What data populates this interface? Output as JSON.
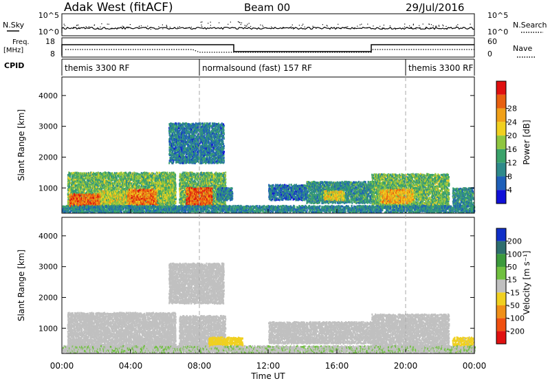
{
  "header": {
    "station": "Adak West (fitACF)",
    "beam": "Beam 00",
    "date": "29/Jul/2016"
  },
  "nsky_panel": {
    "left_label": "N.Sky",
    "right_label": "N.Search",
    "left_ticks": [
      "10^5",
      "10^0"
    ],
    "right_ticks": [
      "10^5",
      "10^0"
    ]
  },
  "freq_panel": {
    "left_label_top": "Freq.",
    "left_label_unit": "[MHz]",
    "right_label": "Nave",
    "left_ticks": [
      "18",
      "8"
    ],
    "right_ticks": [
      "60",
      "0"
    ]
  },
  "cpid_panel": {
    "label": "CPID",
    "segments": [
      {
        "start": 0,
        "end": 8,
        "text": "themis 3300 RF"
      },
      {
        "start": 8,
        "end": 20,
        "text": "normalsound (fast) 157 RF"
      },
      {
        "start": 20,
        "end": 24,
        "text": "themis 3300 RF"
      }
    ]
  },
  "chart_data": [
    {
      "type": "heatmap",
      "title": "",
      "parameter": "power",
      "xlabel": "",
      "ylabel": "Slant Range [km]",
      "xlim": [
        0,
        24
      ],
      "ylim": [
        180,
        4600
      ],
      "yticks": [
        "1000",
        "2000",
        "3000",
        "4000"
      ],
      "colorbar": {
        "label": "Power [dB]",
        "range": [
          0,
          32
        ],
        "tick_labels": [
          "4",
          "8",
          "12",
          "16",
          "20",
          "24",
          "28"
        ],
        "colors": [
          "#1010d8",
          "#1e5fb8",
          "#2e8a8a",
          "#3aa26a",
          "#8fc640",
          "#f0d020",
          "#f0a018",
          "#e86010",
          "#e01010"
        ]
      },
      "blobs": [
        {
          "x0": 0.3,
          "x1": 6.6,
          "y0": 350,
          "y1": 1500,
          "value": 14
        },
        {
          "x0": 0.4,
          "x1": 2.2,
          "y0": 400,
          "y1": 800,
          "value": 26
        },
        {
          "x0": 2.2,
          "x1": 3.8,
          "y0": 450,
          "y1": 900,
          "value": 18
        },
        {
          "x0": 3.8,
          "x1": 5.6,
          "y0": 450,
          "y1": 950,
          "value": 25
        },
        {
          "x0": 5.5,
          "x1": 6.6,
          "y0": 500,
          "y1": 1200,
          "value": 16
        },
        {
          "x0": 6.8,
          "x1": 9.5,
          "y0": 350,
          "y1": 1500,
          "value": 14
        },
        {
          "x0": 7.2,
          "x1": 8.7,
          "y0": 400,
          "y1": 1000,
          "value": 27
        },
        {
          "x0": 9.0,
          "x1": 9.9,
          "y0": 600,
          "y1": 1000,
          "value": 8
        },
        {
          "x0": 6.2,
          "x1": 9.4,
          "y0": 1800,
          "y1": 3100,
          "value": 8
        },
        {
          "x0": 12.0,
          "x1": 14.2,
          "y0": 600,
          "y1": 1100,
          "value": 7
        },
        {
          "x0": 14.2,
          "x1": 18.0,
          "y0": 500,
          "y1": 1200,
          "value": 10
        },
        {
          "x0": 15.2,
          "x1": 16.4,
          "y0": 600,
          "y1": 900,
          "value": 19
        },
        {
          "x0": 18.0,
          "x1": 22.5,
          "y0": 350,
          "y1": 1450,
          "value": 14
        },
        {
          "x0": 18.5,
          "x1": 20.4,
          "y0": 500,
          "y1": 950,
          "value": 22
        },
        {
          "x0": 22.7,
          "x1": 23.9,
          "y0": 400,
          "y1": 1000,
          "value": 10
        },
        {
          "x0": 0.0,
          "x1": 24.0,
          "y0": 200,
          "y1": 420,
          "value": 9
        }
      ]
    },
    {
      "type": "heatmap",
      "title": "",
      "parameter": "velocity",
      "xlabel": "Time UT",
      "ylabel": "Slant Range [km]",
      "xlim": [
        0,
        24
      ],
      "ylim": [
        180,
        4600
      ],
      "xticks": [
        "00:00",
        "04:00",
        "08:00",
        "12:00",
        "16:00",
        "20:00",
        "00:00"
      ],
      "yticks": [
        "1000",
        "2000",
        "3000",
        "4000"
      ],
      "colorbar": {
        "label": "Velocity [m s⁻¹]",
        "range": [
          -250,
          250
        ],
        "tick_labels": [
          "200",
          "100",
          "50",
          "15",
          "-15",
          "-50",
          "-100",
          "-200"
        ],
        "colors": [
          "#1030c8",
          "#2e6e6e",
          "#3c9a3c",
          "#70c040",
          "#c0c0c0",
          "#f0d020",
          "#f09018",
          "#f05010",
          "#e01010"
        ]
      },
      "blobs": [
        {
          "x0": 0.3,
          "x1": 6.6,
          "y0": 350,
          "y1": 1500,
          "value": 0
        },
        {
          "x0": 6.8,
          "x1": 9.5,
          "y0": 350,
          "y1": 1400,
          "value": 0
        },
        {
          "x0": 6.2,
          "x1": 9.4,
          "y0": 1800,
          "y1": 3100,
          "value": 0
        },
        {
          "x0": 8.5,
          "x1": 10.5,
          "y0": 300,
          "y1": 700,
          "value": -60
        },
        {
          "x0": 12.0,
          "x1": 18.0,
          "y0": 500,
          "y1": 1200,
          "value": 0
        },
        {
          "x0": 18.0,
          "x1": 22.5,
          "y0": 350,
          "y1": 1450,
          "value": 0
        },
        {
          "x0": 22.7,
          "x1": 23.9,
          "y0": 250,
          "y1": 700,
          "value": -40
        },
        {
          "x0": 0.0,
          "x1": 24.0,
          "y0": 200,
          "y1": 420,
          "value": 20
        }
      ]
    }
  ]
}
